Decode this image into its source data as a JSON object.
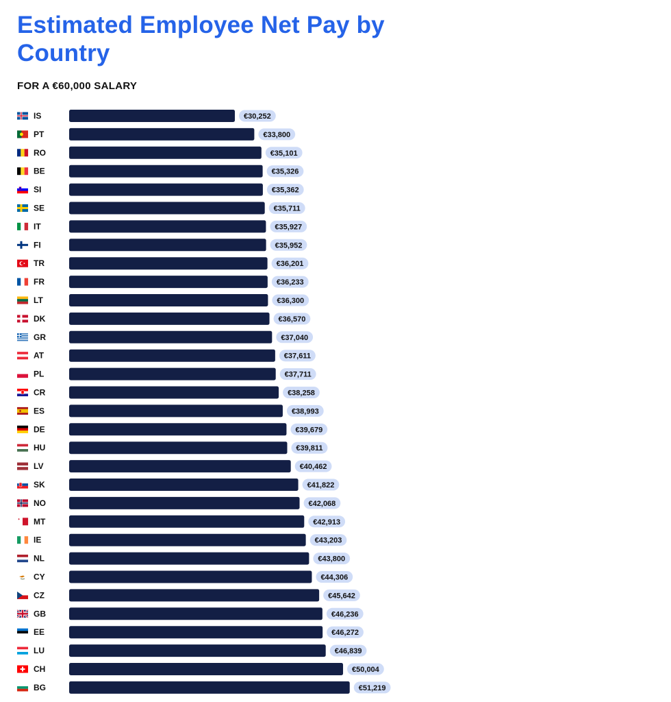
{
  "title": "Estimated Employee Net Pay by Country",
  "subtitle": "FOR A €60,000 SALARY",
  "colors": {
    "title": "#2563e8",
    "bar": "#131f45",
    "label_pill": "#cfdcf7",
    "text": "#111111"
  },
  "chart_data": {
    "type": "bar",
    "orientation": "horizontal",
    "title": "Estimated Employee Net Pay by Country",
    "subtitle": "FOR A €60,000 SALARY",
    "xlabel": "",
    "ylabel": "",
    "xlim": [
      0,
      60000
    ],
    "grid": false,
    "categories": [
      "IS",
      "PT",
      "RO",
      "BE",
      "SI",
      "SE",
      "IT",
      "FI",
      "TR",
      "FR",
      "LT",
      "DK",
      "GR",
      "AT",
      "PL",
      "CR",
      "ES",
      "DE",
      "HU",
      "LV",
      "SK",
      "NO",
      "MT",
      "IE",
      "NL",
      "CY",
      "CZ",
      "GB",
      "EE",
      "LU",
      "CH",
      "BG"
    ],
    "values": [
      30252,
      33800,
      35101,
      35326,
      35362,
      35711,
      35927,
      35952,
      36201,
      36233,
      36300,
      36570,
      37040,
      37611,
      37711,
      38258,
      38993,
      39679,
      39811,
      40462,
      41822,
      42068,
      42913,
      43203,
      43800,
      44306,
      45642,
      46236,
      46272,
      46839,
      50004,
      51219
    ],
    "data_labels": [
      "€30,252",
      "€33,800",
      "€35,101",
      "€35,326",
      "€35,362",
      "€35,711",
      "€35,927",
      "€35,952",
      "€36,201",
      "€36,233",
      "€36,300",
      "€36,570",
      "€37,040",
      "€37,611",
      "€37,711",
      "€38,258",
      "€38,993",
      "€39,679",
      "€39,811",
      "€40,462",
      "€41,822",
      "€42,068",
      "€42,913",
      "€43,203",
      "€43,800",
      "€44,306",
      "€45,642",
      "€46,236",
      "€46,272",
      "€46,839",
      "€50,004",
      "€51,219"
    ],
    "flag_icons": [
      "iceland-flag-icon",
      "portugal-flag-icon",
      "romania-flag-icon",
      "belgium-flag-icon",
      "slovenia-flag-icon",
      "sweden-flag-icon",
      "italy-flag-icon",
      "finland-flag-icon",
      "turkey-flag-icon",
      "france-flag-icon",
      "lithuania-flag-icon",
      "denmark-flag-icon",
      "greece-flag-icon",
      "austria-flag-icon",
      "poland-flag-icon",
      "croatia-flag-icon",
      "spain-flag-icon",
      "germany-flag-icon",
      "hungary-flag-icon",
      "latvia-flag-icon",
      "slovakia-flag-icon",
      "norway-flag-icon",
      "malta-flag-icon",
      "ireland-flag-icon",
      "netherlands-flag-icon",
      "cyprus-flag-icon",
      "czechia-flag-icon",
      "uk-flag-icon",
      "estonia-flag-icon",
      "luxembourg-flag-icon",
      "switzerland-flag-icon",
      "bulgaria-flag-icon"
    ]
  }
}
